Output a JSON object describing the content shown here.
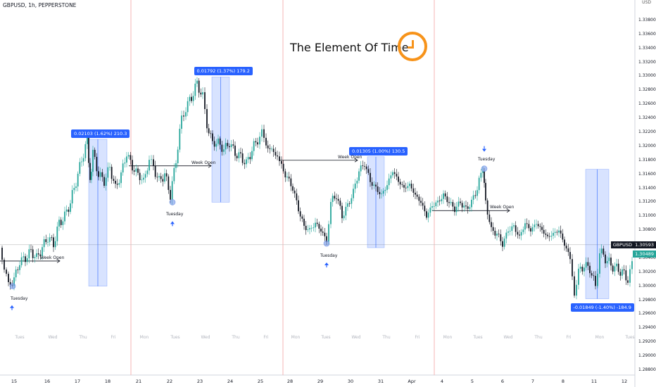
{
  "header": {
    "symbol_title": "GBPUSD, 1h, PEPPERSTONE",
    "currency": "USD"
  },
  "overlay": {
    "title": "The Element Of Time",
    "icon": "clock-icon",
    "accent": "#f7931a"
  },
  "chart_data": {
    "type": "candlestick",
    "symbol": "GBPUSD",
    "ylim": [
      1.2873,
      1.3407
    ],
    "y_ticks": [
      "1.33800",
      "1.33600",
      "1.33400",
      "1.33200",
      "1.33000",
      "1.32800",
      "1.32600",
      "1.32400",
      "1.32200",
      "1.32000",
      "1.31800",
      "1.31600",
      "1.31400",
      "1.31200",
      "1.31000",
      "1.30800",
      "1.30400",
      "1.30200",
      "1.30000",
      "1.29800",
      "1.29600",
      "1.29400",
      "1.29200",
      "1.29000",
      "1.28800"
    ],
    "x_ticks": [
      "15",
      "16",
      "17",
      "18",
      "21",
      "22",
      "23",
      "24",
      "25",
      "28",
      "29",
      "30",
      "31",
      "Apr",
      "4",
      "5",
      "6",
      "7",
      "8",
      "11",
      "12"
    ],
    "day_labels": [
      "Tues",
      "Wed",
      "Thu",
      "Fri",
      "Mon",
      "Tues",
      "Wed",
      "Thu",
      "Fri",
      "Mon",
      "Tues",
      "Wed",
      "Thu",
      "Fri",
      "Mon",
      "Tues",
      "Wed",
      "Thu",
      "Fri",
      "Mon",
      "Tues"
    ],
    "path_points": [
      [
        0,
        1.3055
      ],
      [
        6,
        1.303
      ],
      [
        12,
        1.3
      ],
      [
        20,
        1.301
      ],
      [
        28,
        1.3035
      ],
      [
        36,
        1.304
      ],
      [
        44,
        1.305
      ],
      [
        52,
        1.304
      ],
      [
        60,
        1.3055
      ],
      [
        68,
        1.307
      ],
      [
        76,
        1.306
      ],
      [
        84,
        1.309
      ],
      [
        92,
        1.31
      ],
      [
        100,
        1.312
      ],
      [
        108,
        1.315
      ],
      [
        116,
        1.318
      ],
      [
        124,
        1.321
      ],
      [
        128,
        1.315
      ],
      [
        132,
        1.319
      ],
      [
        140,
        1.316
      ],
      [
        148,
        1.315
      ],
      [
        156,
        1.317
      ],
      [
        164,
        1.314
      ],
      [
        172,
        1.316
      ],
      [
        180,
        1.319
      ],
      [
        188,
        1.317
      ],
      [
        196,
        1.316
      ],
      [
        204,
        1.315
      ],
      [
        212,
        1.318
      ],
      [
        218,
        1.317
      ],
      [
        226,
        1.315
      ],
      [
        234,
        1.316
      ],
      [
        242,
        1.313
      ],
      [
        250,
        1.318
      ],
      [
        258,
        1.324
      ],
      [
        264,
        1.3255
      ],
      [
        272,
        1.327
      ],
      [
        280,
        1.329
      ],
      [
        288,
        1.327
      ],
      [
        294,
        1.323
      ],
      [
        302,
        1.3205
      ],
      [
        310,
        1.3205
      ],
      [
        318,
        1.3195
      ],
      [
        326,
        1.3205
      ],
      [
        334,
        1.319
      ],
      [
        342,
        1.3185
      ],
      [
        350,
        1.3175
      ],
      [
        358,
        1.3195
      ],
      [
        366,
        1.321
      ],
      [
        372,
        1.322
      ],
      [
        378,
        1.32
      ],
      [
        386,
        1.3195
      ],
      [
        394,
        1.3185
      ],
      [
        400,
        1.317
      ],
      [
        408,
        1.3155
      ],
      [
        416,
        1.314
      ],
      [
        424,
        1.311
      ],
      [
        432,
        1.3085
      ],
      [
        440,
        1.308
      ],
      [
        448,
        1.309
      ],
      [
        456,
        1.308
      ],
      [
        464,
        1.3065
      ],
      [
        470,
        1.312
      ],
      [
        478,
        1.313
      ],
      [
        486,
        1.31
      ],
      [
        494,
        1.3115
      ],
      [
        502,
        1.3135
      ],
      [
        510,
        1.3165
      ],
      [
        518,
        1.3175
      ],
      [
        526,
        1.315
      ],
      [
        534,
        1.314
      ],
      [
        542,
        1.313
      ],
      [
        550,
        1.3145
      ],
      [
        558,
        1.3165
      ],
      [
        566,
        1.315
      ],
      [
        574,
        1.314
      ],
      [
        582,
        1.3145
      ],
      [
        590,
        1.313
      ],
      [
        598,
        1.312
      ],
      [
        606,
        1.31
      ],
      [
        614,
        1.3115
      ],
      [
        622,
        1.312
      ],
      [
        630,
        1.313
      ],
      [
        638,
        1.312
      ],
      [
        646,
        1.311
      ],
      [
        654,
        1.312
      ],
      [
        662,
        1.311
      ],
      [
        670,
        1.312
      ],
      [
        678,
        1.314
      ],
      [
        686,
        1.317
      ],
      [
        690,
        1.312
      ],
      [
        698,
        1.308
      ],
      [
        706,
        1.3075
      ],
      [
        714,
        1.306
      ],
      [
        722,
        1.308
      ],
      [
        730,
        1.3085
      ],
      [
        738,
        1.307
      ],
      [
        746,
        1.309
      ],
      [
        754,
        1.308
      ],
      [
        762,
        1.309
      ],
      [
        770,
        1.308
      ],
      [
        778,
        1.307
      ],
      [
        786,
        1.3075
      ],
      [
        794,
        1.308
      ],
      [
        802,
        1.306
      ],
      [
        810,
        1.304
      ],
      [
        816,
        1.299
      ],
      [
        822,
        1.302
      ],
      [
        830,
        1.303
      ],
      [
        838,
        1.3025
      ],
      [
        846,
        1.3
      ],
      [
        852,
        1.305
      ],
      [
        860,
        1.304
      ],
      [
        868,
        1.303
      ],
      [
        876,
        1.3025
      ],
      [
        884,
        1.302
      ],
      [
        892,
        1.301
      ],
      [
        898,
        1.303
      ]
    ],
    "current_price": {
      "label": "1.30489",
      "value": 1.30489,
      "color": "#26a69a"
    },
    "reference_price": {
      "label": "1.30593",
      "value": 1.30593,
      "color": "#131722"
    },
    "reference_tag_text": "GBPUSD",
    "measures": [
      {
        "label": "0.02103 (1.62%) 210.3",
        "x1": 126,
        "x2": 152,
        "y1": 1.3,
        "y2": 1.321
      },
      {
        "label": "0.01792 (1.37%) 179.2",
        "x1": 301,
        "x2": 326,
        "y1": 1.312,
        "y2": 1.3299
      },
      {
        "label": "0.01305 (1.00%) 130.5",
        "x1": 522,
        "x2": 546,
        "y1": 1.3055,
        "y2": 1.3185
      },
      {
        "label": "-0.01849 (-1.40%) -184.9",
        "x1": 832,
        "x2": 865,
        "y1": 1.2982,
        "y2": 1.3167
      }
    ],
    "week_open_lines": [
      {
        "label": "Week Open",
        "x1": 0,
        "x2": 85,
        "value": 1.3036
      },
      {
        "label": "Week Open",
        "x1": 183,
        "x2": 300,
        "value": 1.3172
      },
      {
        "label": "Week Open",
        "x1": 398,
        "x2": 508,
        "value": 1.318
      },
      {
        "label": "Week Open",
        "x1": 614,
        "x2": 724,
        "value": 1.3108
      }
    ],
    "tuesday_notes": [
      {
        "label": "Tuesday",
        "x": 18,
        "value": 1.3
      },
      {
        "label": "Tuesday",
        "x": 245,
        "value": 1.312
      },
      {
        "label": "Tuesday",
        "x": 464,
        "value": 1.3061
      },
      {
        "label": "Tuesday",
        "x": 688,
        "value": 1.3168
      }
    ]
  }
}
